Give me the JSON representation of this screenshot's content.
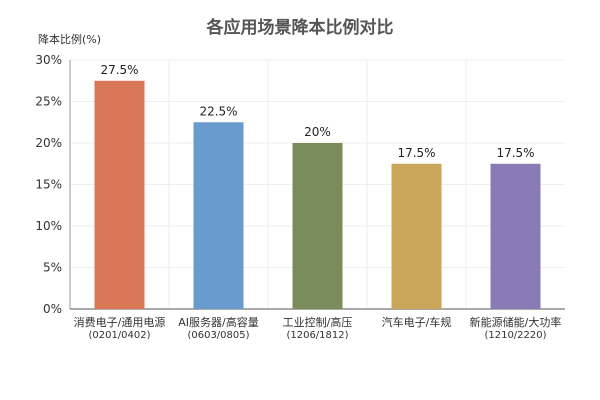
{
  "chart_data": {
    "type": "bar",
    "title": "各应用场景降本比例对比",
    "ylabel": "降本比例(%)",
    "xlabel": "",
    "categories": [
      [
        "消费电子/通用电源",
        "(0201/0402)"
      ],
      [
        "AI服务器/高容量",
        "(0603/0805)"
      ],
      [
        "工业控制/高压",
        "(1206/1812)"
      ],
      [
        "汽车电子/车规",
        ""
      ],
      [
        "新能源储能/大功率",
        "(1210/2220)"
      ]
    ],
    "values": [
      27.5,
      22.5,
      20,
      17.5,
      17.5
    ],
    "value_labels": [
      "27.5%",
      "22.5%",
      "20%",
      "17.5%",
      "17.5%"
    ],
    "colors": [
      "#d97757",
      "#6a9bcf",
      "#7a8c5c",
      "#c9a65a",
      "#8a7bb6"
    ],
    "ylim": [
      0,
      30
    ],
    "yticks": [
      0,
      5,
      10,
      15,
      20,
      25,
      30
    ],
    "ytick_labels": [
      "0%",
      "5%",
      "10%",
      "15%",
      "20%",
      "25%",
      "30%"
    ],
    "grid": true,
    "legend": "none"
  }
}
